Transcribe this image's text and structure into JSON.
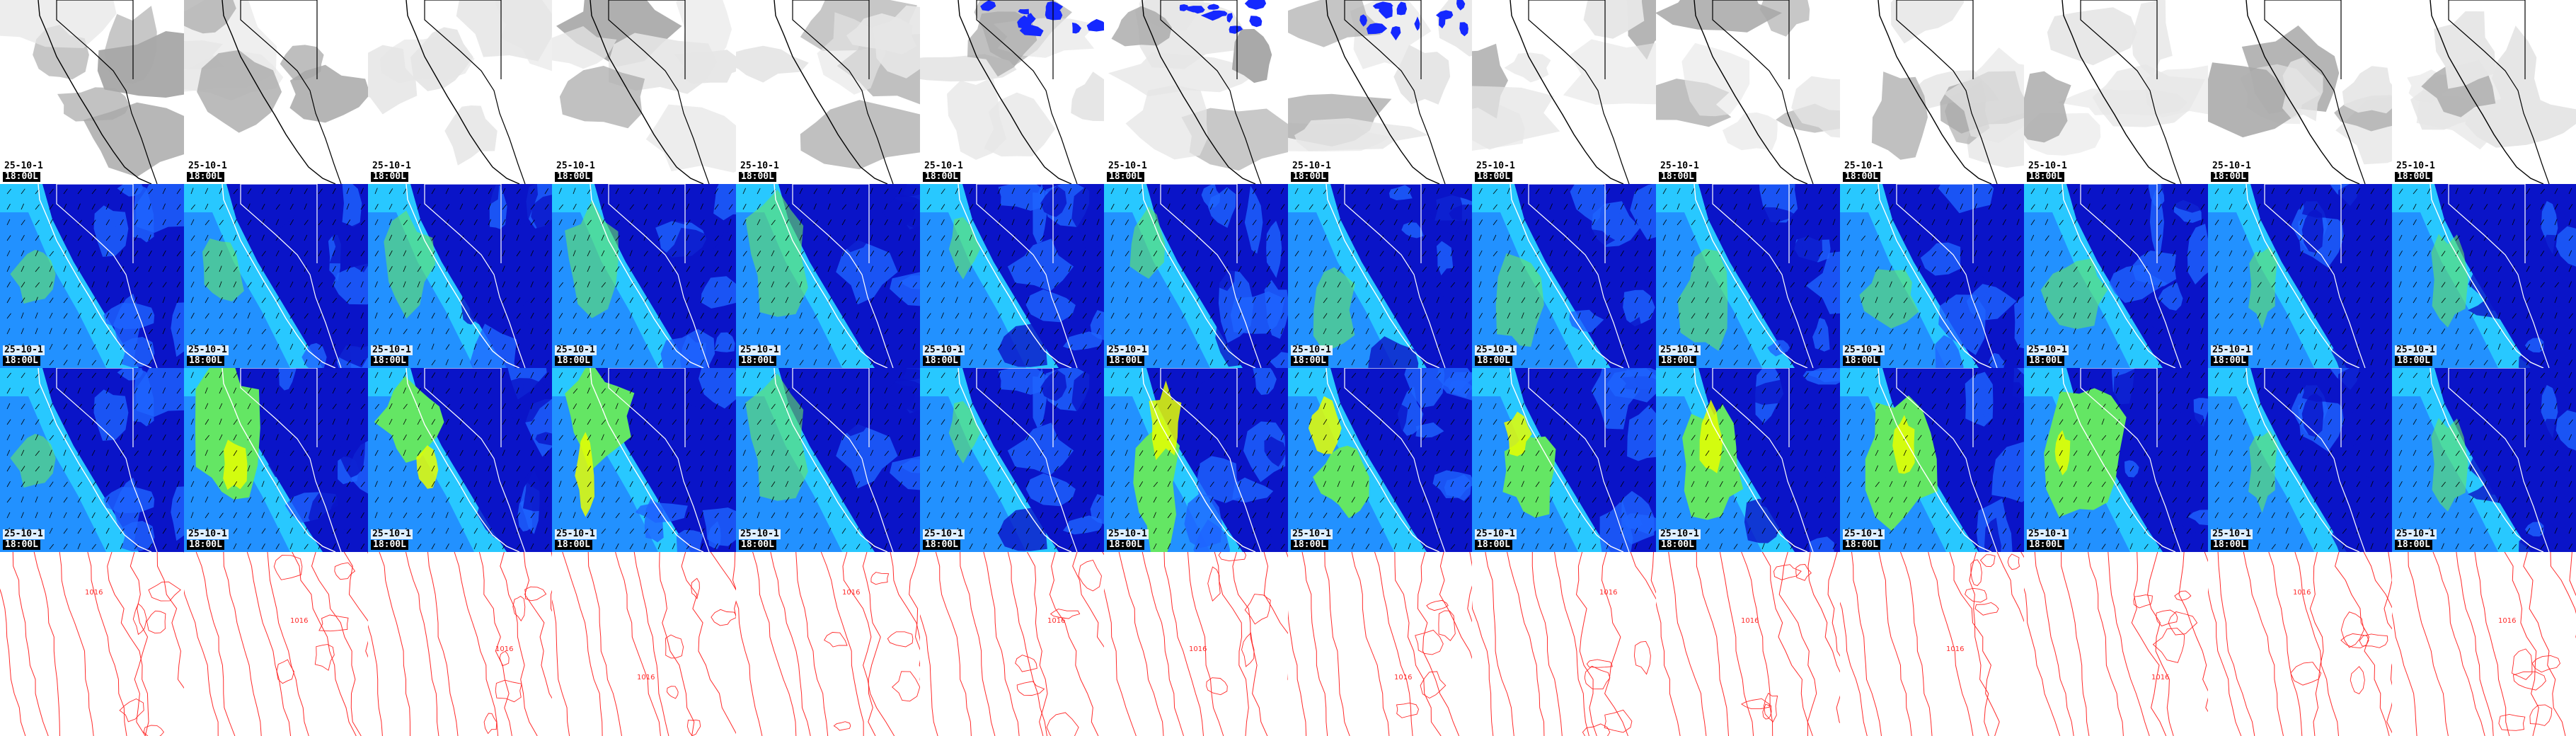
{
  "rows": [
    {
      "name": "satellite-cloud",
      "show_stamp": true
    },
    {
      "name": "wind-speed-lower",
      "show_stamp": true
    },
    {
      "name": "wind-speed-upper",
      "show_stamp": true
    },
    {
      "name": "pressure-contours",
      "show_stamp": false
    }
  ],
  "stamp": {
    "date": "25-10-1",
    "time": "18:00L"
  },
  "contour_label": "1016",
  "colors": {
    "cloud_light": "#e6e6e6",
    "cloud_dark": "#a8a8a8",
    "precip_blue": "#1428ff",
    "border": "#000000",
    "wind_deep": "#0a14c8",
    "wind_mid": "#1e64ff",
    "wind_light": "#28c8ff",
    "wind_green": "#64e664",
    "wind_yellow": "#e6ff00",
    "contour_red": "#ff2a2a"
  }
}
